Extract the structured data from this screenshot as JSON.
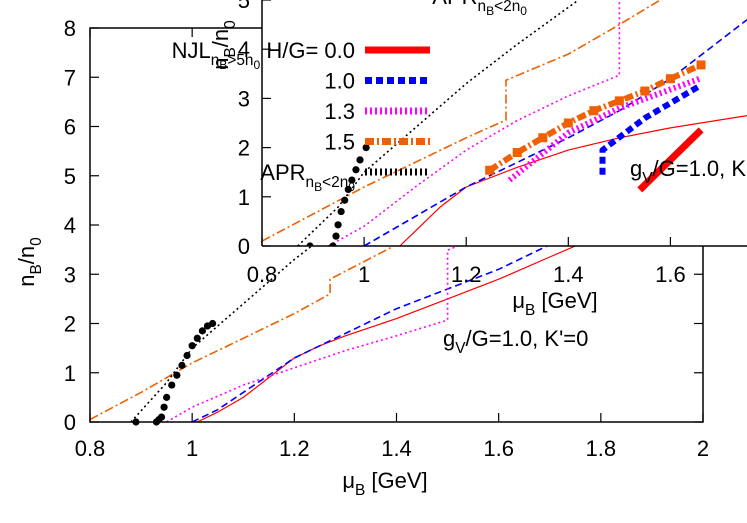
{
  "chart_data": [
    {
      "type": "line",
      "xlabel": [
        {
          "text": "μ"
        },
        {
          "text": "B",
          "sub": 1
        },
        {
          "text": " [GeV]"
        }
      ],
      "ylabel": [
        {
          "text": "n"
        },
        {
          "text": "B",
          "sub": 1
        },
        {
          "text": "/n"
        },
        {
          "text": "0",
          "sub": 1
        }
      ],
      "annotation": [
        {
          "text": "g"
        },
        {
          "text": "V",
          "sub": 1
        },
        {
          "text": "/G=1.0, K'=0"
        }
      ],
      "xlim": [
        0.8,
        2.0
      ],
      "ylim": [
        0,
        8
      ],
      "xticks": [
        0.8,
        1,
        1.2,
        1.4,
        1.6,
        1.8,
        2
      ],
      "yticks": [
        0,
        1,
        2,
        3,
        4,
        5,
        6,
        7,
        8
      ],
      "series": [
        {
          "name": [
            {
              "text": "NJL"
            },
            {
              "text": "n",
              "sub": 1
            },
            {
              "text": "B",
              "sub": 2
            },
            {
              "text": ">5n",
              "sub": 1
            },
            {
              "text": "0",
              "sub": 2
            },
            {
              "text": " H/G= 0.0"
            }
          ],
          "color": "#ff0000",
          "dash": "solid",
          "width": 1.2,
          "x": [
            1.01,
            1.05,
            1.1,
            1.15,
            1.2,
            1.25,
            1.3,
            1.4,
            1.5,
            1.6,
            1.7,
            1.8,
            1.9,
            2.0
          ],
          "values": [
            0,
            0.2,
            0.5,
            0.9,
            1.3,
            1.55,
            1.75,
            2.1,
            2.5,
            2.9,
            3.35,
            3.8,
            4.3,
            4.8
          ]
        },
        {
          "name": "1.0",
          "color": "#0000ff",
          "dash": "dashed",
          "width": 1.6,
          "x": [
            1.0,
            1.05,
            1.1,
            1.2,
            1.3,
            1.4,
            1.5,
            1.6,
            1.7,
            1.8,
            1.9,
            2.0
          ],
          "values": [
            0,
            0.25,
            0.6,
            1.3,
            1.8,
            2.3,
            2.7,
            3.1,
            3.6,
            4.1,
            5.0,
            5.9
          ]
        },
        {
          "name": "1.3",
          "color": "#ff00ff",
          "dash": "dotted",
          "width": 1.6,
          "x": [
            0.95,
            1.0,
            1.1,
            1.2,
            1.3,
            1.4,
            1.5,
            1.5,
            1.6,
            1.7,
            1.8,
            1.9,
            2.0
          ],
          "values": [
            0,
            0.3,
            0.75,
            1.1,
            1.45,
            1.75,
            2.07,
            3.49,
            3.9,
            4.3,
            4.8,
            5.3,
            5.8
          ]
        },
        {
          "name": "1.5",
          "color": "#f06000",
          "dash": "dashdot",
          "width": 1.6,
          "x": [
            0.8,
            0.9,
            1.0,
            1.1,
            1.2,
            1.27,
            1.27,
            1.4,
            1.6,
            1.8,
            2.0
          ],
          "values": [
            0.05,
            0.6,
            1.2,
            1.7,
            2.2,
            2.6,
            2.9,
            3.6,
            4.9,
            6.2,
            7.4
          ]
        },
        {
          "name": [
            {
              "text": "APR"
            },
            {
              "text": "n",
              "sub": 1
            },
            {
              "text": "B",
              "sub": 2
            },
            {
              "text": "<2n",
              "sub": 1
            },
            {
              "text": "0",
              "sub": 2
            }
          ],
          "color": "#000000",
          "dash": "dotted",
          "width": 1.6,
          "x": [
            0.88,
            0.95,
            1.0,
            1.1,
            1.2,
            1.3,
            1.4,
            1.5,
            1.6,
            1.7,
            1.8,
            1.87
          ],
          "values": [
            0,
            0.8,
            1.5,
            2.4,
            3.3,
            4.1,
            4.9,
            5.6,
            6.3,
            7.0,
            7.6,
            8.0
          ]
        },
        {
          "color": "#000000",
          "dash": "none",
          "marker": "circle",
          "x": [
            0.89,
            0.93,
            0.935,
            0.94,
            0.945,
            0.95,
            0.96,
            0.97,
            0.98,
            0.99,
            1.0,
            1.01,
            1.02,
            1.03,
            1.04
          ],
          "values": [
            0,
            0,
            0.05,
            0.1,
            0.3,
            0.5,
            0.75,
            0.95,
            1.15,
            1.35,
            1.55,
            1.7,
            1.85,
            1.95,
            2.0
          ]
        }
      ]
    },
    {
      "type": "line",
      "xlabel": [
        {
          "text": "μ"
        },
        {
          "text": "B",
          "sub": 1
        },
        {
          "text": " [GeV]"
        }
      ],
      "ylabel": [
        {
          "text": "n"
        },
        {
          "text": "B",
          "sub": 1
        },
        {
          "text": "/n"
        },
        {
          "text": "0",
          "sub": 1
        }
      ],
      "annotation": [
        {
          "text": "g"
        },
        {
          "text": "V",
          "sub": 1
        },
        {
          "text": "/G=1.0, K"
        }
      ],
      "xlim": [
        0.8,
        1.75
      ],
      "ylim": [
        0,
        5
      ],
      "xticks": [
        0.8,
        1,
        1.2,
        1.4,
        1.6
      ],
      "yticks": [
        0,
        1,
        2,
        3,
        4,
        5
      ],
      "series": [
        {
          "color": "#ff0000",
          "dash": "solid",
          "width": 1.2,
          "x": [
            1.07,
            1.1,
            1.15,
            1.2,
            1.3,
            1.4,
            1.5,
            1.6,
            1.75
          ],
          "values": [
            0,
            0.3,
            0.8,
            1.2,
            1.6,
            1.95,
            2.2,
            2.4,
            2.65
          ]
        },
        {
          "color": "#0000ff",
          "dash": "dashed",
          "width": 1.6,
          "x": [
            1.0,
            1.1,
            1.2,
            1.3,
            1.4,
            1.5,
            1.6,
            1.7,
            1.75
          ],
          "values": [
            0,
            0.6,
            1.2,
            1.7,
            2.2,
            2.75,
            3.4,
            4.2,
            4.6
          ]
        },
        {
          "color": "#ff00ff",
          "dash": "dotted",
          "width": 1.6,
          "x": [
            0.93,
            1.0,
            1.1,
            1.2,
            1.3,
            1.4,
            1.5,
            1.5
          ],
          "values": [
            0,
            0.4,
            1.2,
            1.95,
            2.55,
            3.05,
            3.47,
            5.0
          ]
        },
        {
          "color": "#f06000",
          "dash": "dashdot",
          "width": 1.6,
          "x": [
            0.8,
            1.0,
            1.2,
            1.278,
            1.278,
            1.4,
            1.5,
            1.58
          ],
          "values": [
            0.1,
            1.2,
            2.2,
            2.56,
            3.37,
            3.9,
            4.5,
            5.0
          ]
        },
        {
          "name": [
            {
              "text": "APR"
            },
            {
              "text": "n",
              "sub": 1
            },
            {
              "text": "B",
              "sub": 2
            },
            {
              "text": "<2n",
              "sub": 1
            },
            {
              "text": "0",
              "sub": 2
            }
          ],
          "color": "#000000",
          "dash": "dotted",
          "width": 1.6,
          "x": [
            0.87,
            0.95,
            1.0,
            1.1,
            1.2,
            1.3,
            1.42
          ],
          "values": [
            0,
            0.8,
            1.5,
            2.4,
            3.3,
            4.1,
            5.0
          ]
        },
        {
          "color": "#000000",
          "dash": "none",
          "marker": "circle",
          "x": [
            0.894,
            0.939,
            0.945,
            0.949,
            0.955,
            0.962,
            0.969,
            0.976,
            0.984,
            0.992,
            1.004
          ],
          "values": [
            0,
            0,
            0.2,
            0.43,
            0.7,
            0.93,
            1.15,
            1.34,
            1.55,
            1.75,
            2.0
          ]
        },
        {
          "color": "#ff0000",
          "dash": "solid",
          "width": 7,
          "x": [
            1.54,
            1.6,
            1.66
          ],
          "values": [
            1.14,
            1.75,
            2.36
          ]
        },
        {
          "color": "#0000ff",
          "dash": "dashed",
          "width": 6,
          "x": [
            1.467,
            1.467,
            1.55,
            1.66
          ],
          "values": [
            1.45,
            1.95,
            2.6,
            3.27
          ]
        },
        {
          "color": "#ff00ff",
          "dash": "dotted",
          "width": 6,
          "x": [
            1.285,
            1.4,
            1.5,
            1.66
          ],
          "values": [
            1.34,
            2.3,
            2.8,
            3.41
          ]
        },
        {
          "color": "#f06000",
          "dash": "dashdot",
          "width": 6,
          "marker": "square",
          "x": [
            1.246,
            1.3,
            1.35,
            1.4,
            1.45,
            1.5,
            1.55,
            1.6,
            1.66
          ],
          "values": [
            1.54,
            1.9,
            2.2,
            2.5,
            2.75,
            2.95,
            3.15,
            3.4,
            3.68
          ]
        }
      ]
    }
  ]
}
